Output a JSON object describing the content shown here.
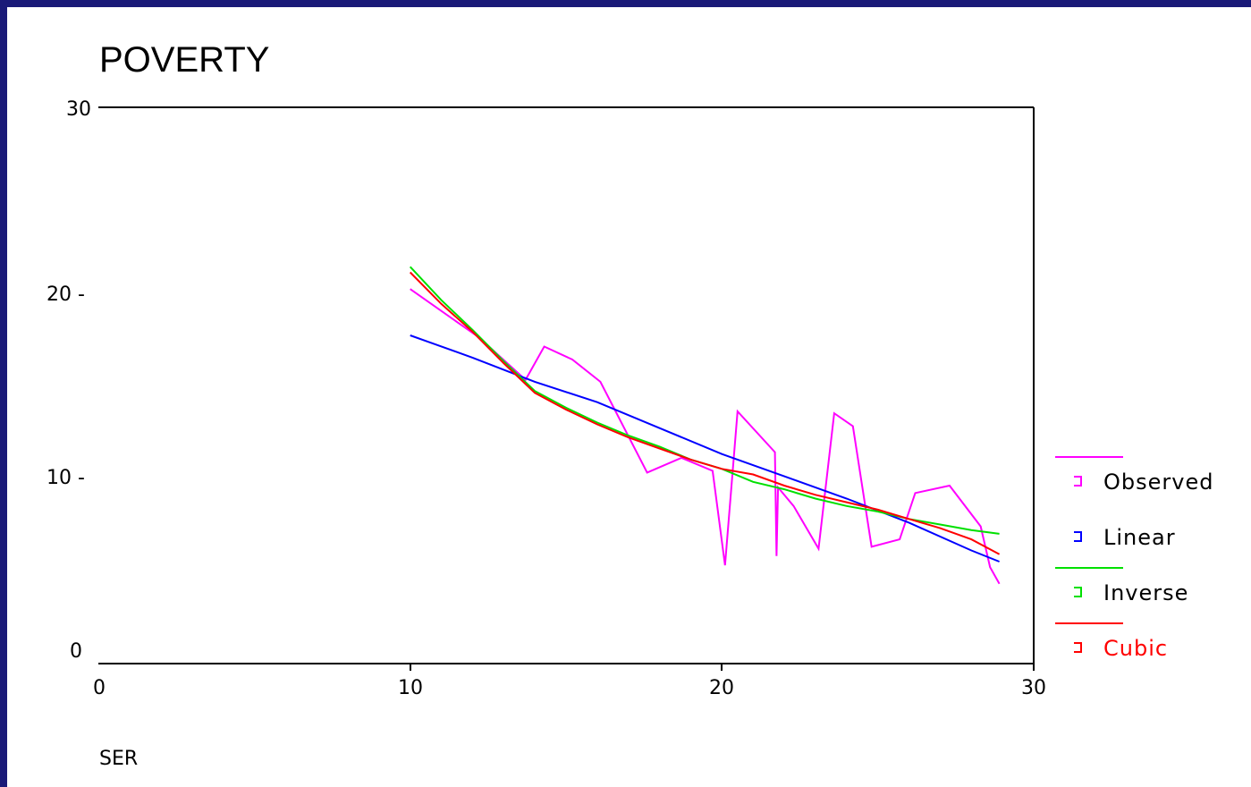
{
  "colors": {
    "background": "#1a1a78",
    "observed": "#ff00ff",
    "linear": "#0000ff",
    "inverse": "#00e000",
    "cubic": "#ff0000"
  },
  "chart_data": {
    "type": "line",
    "title": "POVERTY",
    "xlabel": "SER",
    "ylabel": "",
    "xlim": [
      0,
      30
    ],
    "ylim": [
      0,
      30
    ],
    "x_ticks": [
      "0",
      "10",
      "20",
      "30"
    ],
    "y_ticks": [
      "0",
      "10 -",
      "20 -",
      "30"
    ],
    "grid": false,
    "legend_position": "right",
    "series": [
      {
        "name": "Observed",
        "color": "#ff00ff",
        "x": [
          10,
          12.2,
          13.7,
          14.3,
          15.2,
          16.1,
          17.6,
          18.7,
          19.7,
          20.1,
          20.5,
          21.7,
          21.75,
          21.8,
          22.3,
          23.1,
          23.6,
          24.2,
          24.8,
          25.7,
          26.2,
          27.3,
          28.3,
          28.6,
          28.9
        ],
        "y": [
          20.2,
          17.6,
          15.3,
          17.1,
          16.4,
          15.2,
          10.3,
          11.1,
          10.4,
          5.3,
          13.6,
          11.4,
          5.8,
          9.5,
          8.5,
          6.2,
          13.5,
          12.8,
          6.3,
          6.7,
          9.2,
          9.6,
          7.4,
          5.2,
          4.3
        ]
      },
      {
        "name": "Linear",
        "color": "#0000ff",
        "x": [
          10,
          12,
          14,
          16,
          18,
          20,
          22,
          24,
          26,
          28,
          28.9
        ],
        "y": [
          17.7,
          16.5,
          15.2,
          14.1,
          12.7,
          11.3,
          10.1,
          8.9,
          7.6,
          6.1,
          5.5
        ]
      },
      {
        "name": "Inverse",
        "color": "#00e000",
        "x": [
          10,
          11,
          12,
          13,
          14,
          15,
          16,
          17,
          18,
          19,
          20,
          21,
          22,
          23,
          24,
          25,
          26,
          27,
          28,
          28.9
        ],
        "y": [
          21.4,
          19.6,
          18.0,
          16.3,
          14.7,
          13.8,
          13.0,
          12.3,
          11.7,
          11.0,
          10.5,
          9.8,
          9.4,
          8.9,
          8.5,
          8.2,
          7.8,
          7.5,
          7.2,
          7.0
        ]
      },
      {
        "name": "Cubic",
        "color": "#ff0000",
        "x": [
          10,
          11,
          12,
          13,
          14,
          15,
          16,
          17,
          18,
          19,
          20,
          21,
          22,
          23,
          24,
          25,
          26,
          27,
          28,
          28.9
        ],
        "y": [
          21.1,
          19.4,
          17.9,
          16.2,
          14.6,
          13.7,
          12.9,
          12.2,
          11.6,
          11.0,
          10.5,
          10.2,
          9.6,
          9.1,
          8.7,
          8.3,
          7.8,
          7.3,
          6.7,
          5.9
        ]
      }
    ]
  }
}
